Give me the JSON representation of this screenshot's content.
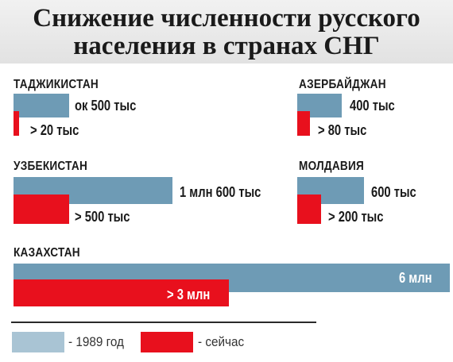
{
  "title_lines": [
    "Снижение численности русского",
    "населения в странах СНГ"
  ],
  "colors": {
    "y1989": "#6e9bb5",
    "now": "#e8101d"
  },
  "chart_data": {
    "type": "bar",
    "title": "Снижение численности русского населения в странах СНГ",
    "series": [
      {
        "name": "1989 год",
        "color": "#6e9bb5"
      },
      {
        "name": "сейчас",
        "color": "#e8101d"
      }
    ],
    "categories": [
      "ТАДЖИКИСТАН",
      "АЗЕРБАЙДЖАН",
      "УЗБЕКИСТАН",
      "МОЛДАВИЯ",
      "КАЗАХСТАН"
    ],
    "groups": [
      {
        "country": "ТАДЖИКИСТАН",
        "values": [
          500000,
          20000
        ],
        "labels": [
          "ок 500 тыс",
          "> 20 тыс"
        ]
      },
      {
        "country": "АЗЕРБАЙДЖАН",
        "values": [
          400000,
          80000
        ],
        "labels": [
          "400 тыс",
          "> 80 тыс"
        ]
      },
      {
        "country": "УЗБЕКИСТАН",
        "values": [
          1600000,
          500000
        ],
        "labels": [
          "1 млн 600 тыс",
          "> 500 тыс"
        ]
      },
      {
        "country": "МОЛДАВИЯ",
        "values": [
          600000,
          200000
        ],
        "labels": [
          "600 тыс",
          "> 200 тыс"
        ]
      },
      {
        "country": "КАЗАХСТАН",
        "values": [
          6000000,
          3000000
        ],
        "labels": [
          "6 млн",
          "> 3 млн"
        ]
      }
    ],
    "legend": [
      {
        "label": "- 1989 год",
        "color": "#6e9bb5"
      },
      {
        "label": "- сейчас",
        "color": "#e8101d"
      }
    ]
  }
}
